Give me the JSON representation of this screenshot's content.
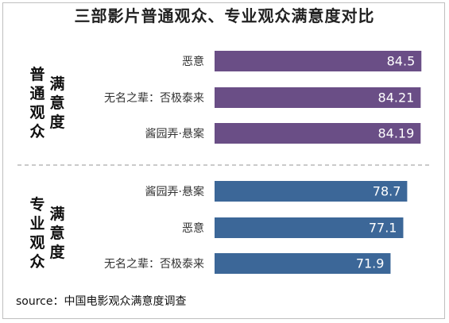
{
  "title": "三部影片普通观众、专业观众满意度对比",
  "source": "source：中国电影观众满意度调查",
  "colors": {
    "general": "#6a4e86",
    "professional": "#3c6798",
    "divider": "#aaaaaa"
  },
  "chart_data": {
    "type": "bar",
    "orientation": "horizontal",
    "groups": [
      {
        "label_line1": "普通观众",
        "label_line2": "满意度",
        "categories": [
          "恶意",
          "无名之辈：否极泰来",
          "酱园弄·悬案"
        ],
        "values": [
          84.5,
          84.21,
          84.19
        ],
        "value_labels": [
          "84.5",
          "84.21",
          "84.19"
        ]
      },
      {
        "label_line1": "专业观众",
        "label_line2": "满意度",
        "categories": [
          "酱园弄·悬案",
          "恶意",
          "无名之辈：否极泰来"
        ],
        "values": [
          78.7,
          77.1,
          71.9
        ],
        "value_labels": [
          "78.7",
          "77.1",
          "71.9"
        ]
      }
    ],
    "xlim": [
      0,
      100
    ],
    "grid": false,
    "legend": "none"
  }
}
